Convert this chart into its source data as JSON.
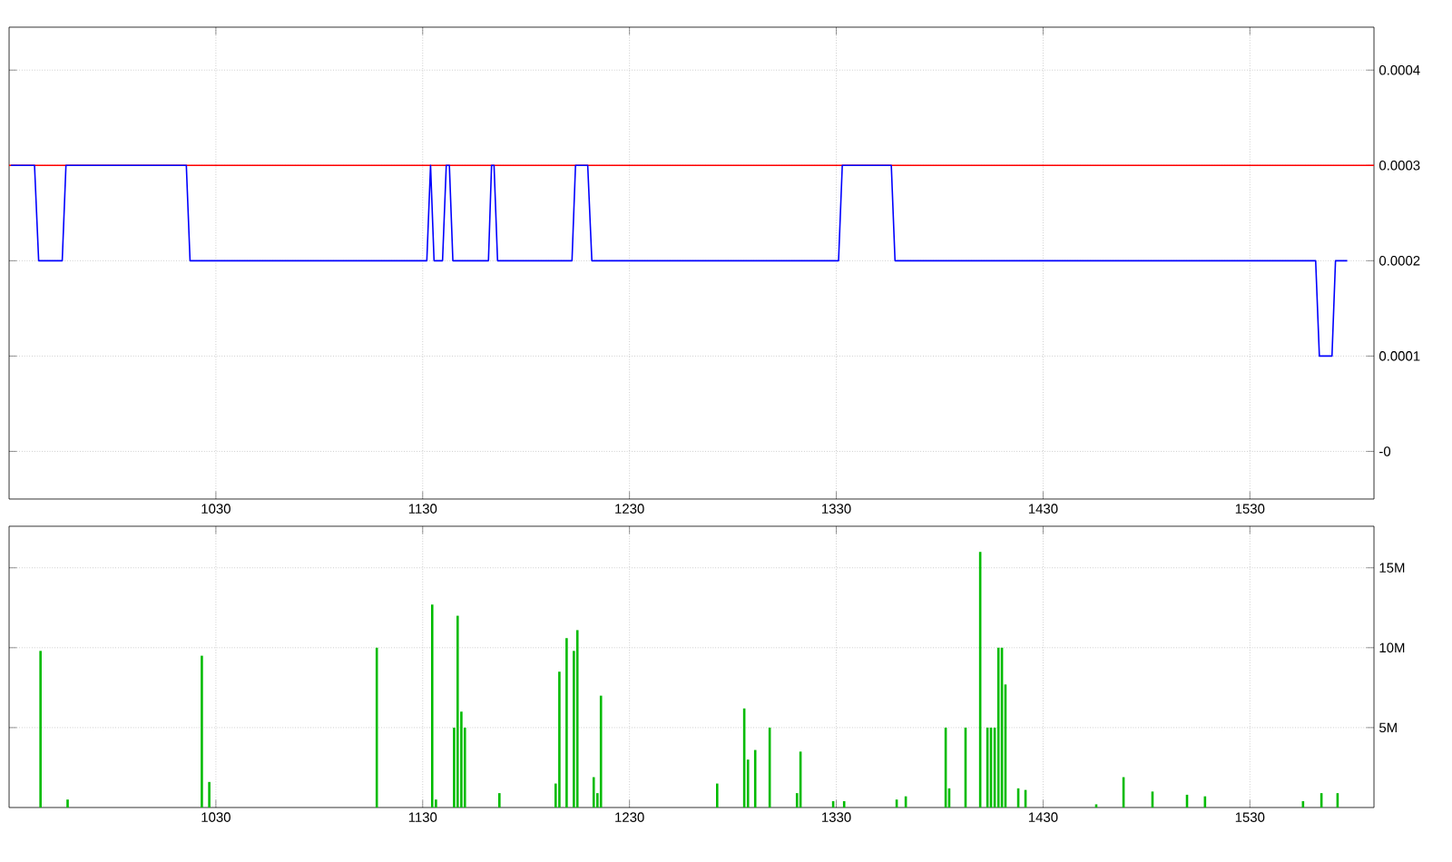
{
  "chart_data": [
    {
      "type": "line",
      "color": "#0000ff",
      "line_style": "solid",
      "marker": "none",
      "grid": true,
      "x": [
        930.9,
        942.3,
        944.3,
        955.7,
        957.5,
        1015.7,
        1017.5,
        1132,
        1133.8,
        1135.5,
        1139.6,
        1141.4,
        1142.9,
        1144.6,
        1161.8,
        1163.3,
        1164.5,
        1166.2,
        1202.2,
        1203.9,
        1209.8,
        1211.8,
        1331.1,
        1332.9,
        1356.6,
        1358.4,
        1561.8,
        1563.6,
        1569.7,
        1571.4,
        1577.1
      ],
      "values": [
        0.0003,
        0.0003,
        0.0002,
        0.0002,
        0.0003,
        0.0003,
        0.0002,
        0.0002,
        0.0003,
        0.0002,
        0.0002,
        0.0003,
        0.0003,
        0.0002,
        0.0002,
        0.0003,
        0.0003,
        0.0002,
        0.0002,
        0.0003,
        0.0003,
        0.0002,
        0.0002,
        0.0003,
        0.0003,
        0.0002,
        0.0002,
        0.0001,
        0.0001,
        0.0002,
        0.0002
      ],
      "xlim": [
        930,
        1590
      ],
      "ylim": [
        -5e-05,
        0.000445
      ],
      "xticks": [
        1030,
        1130,
        1230,
        1330,
        1430,
        1530
      ],
      "yticks": [
        {
          "value": 0,
          "label": "-0"
        },
        {
          "value": 0.0001,
          "label": "0.0001"
        },
        {
          "value": 0.0002,
          "label": "0.0002"
        },
        {
          "value": 0.0003,
          "label": "0.0003"
        },
        {
          "value": 0.0004,
          "label": "0.0004"
        }
      ],
      "ref_lines": [
        {
          "axis": "y",
          "value": 0.0003,
          "color": "#ff0000"
        }
      ]
    },
    {
      "type": "bar",
      "color": "#00bb00",
      "grid": true,
      "x": [
        945.2,
        958.3,
        1023.2,
        1026.8,
        1107.8,
        1134.6,
        1136.4,
        1145.2,
        1146.9,
        1148.7,
        1150.4,
        1167.1,
        1194.3,
        1196.1,
        1199.6,
        1203.1,
        1204.8,
        1212.7,
        1214.5,
        1216.2,
        1272.4,
        1285.5,
        1287.3,
        1290.8,
        1297.8,
        1311,
        1312.7,
        1328.5,
        1333.8,
        1359.2,
        1363.6,
        1382.9,
        1384.6,
        1392.5,
        1399.6,
        1403.1,
        1404.8,
        1406.6,
        1408.4,
        1410.1,
        1411.8,
        1418,
        1421.5,
        1455.7,
        1468.9,
        1482.9,
        1499.6,
        1508.3,
        1555.7,
        1564.6,
        1572.4
      ],
      "values": [
        9.8,
        0.5,
        9.5,
        1.6,
        10.0,
        12.7,
        0.5,
        5.0,
        12.0,
        6.0,
        5.0,
        0.9,
        1.5,
        8.5,
        10.6,
        9.8,
        11.1,
        1.9,
        0.9,
        7.0,
        1.5,
        6.2,
        3.0,
        3.6,
        5.0,
        0.9,
        3.5,
        0.4,
        0.4,
        0.5,
        0.7,
        5.0,
        1.2,
        5.0,
        16.0,
        5.0,
        5.0,
        5.0,
        10.0,
        10.0,
        7.7,
        1.2,
        1.1,
        0.2,
        1.9,
        1.0,
        0.8,
        0.7,
        0.4,
        0.9,
        0.9
      ],
      "xlim": [
        930,
        1590
      ],
      "ylim": [
        0,
        17.6
      ],
      "xticks": [
        1030,
        1130,
        1230,
        1330,
        1430,
        1530
      ],
      "yticks": [
        {
          "value": 5,
          "label": "5M"
        },
        {
          "value": 10,
          "label": "10M"
        },
        {
          "value": 15,
          "label": "15M"
        }
      ]
    }
  ]
}
